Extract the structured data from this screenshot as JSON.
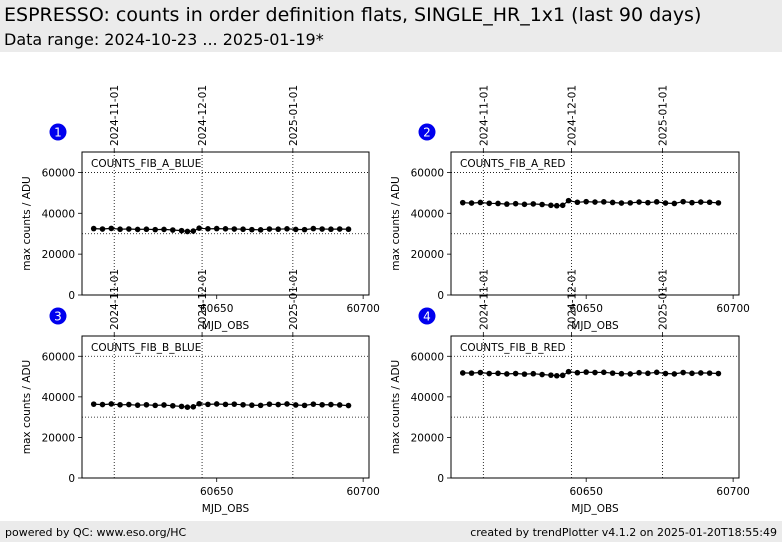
{
  "header": {
    "title": "ESPRESSO: counts in order definition flats, SINGLE_HR_1x1 (last 90 days)",
    "subtitle": "Data range: 2024-10-23 ... 2025-01-19*"
  },
  "footer": {
    "left": "powered by QC: www.eso.org/HC",
    "right": "created by trendPlotter v4.1.2 on 2025-01-20T18:55:49"
  },
  "colors": {
    "marker": "#000000",
    "badge": "#0000ee",
    "header_bg": "#ebebeb"
  },
  "chart_data": [
    {
      "type": "scatter",
      "badge": "1",
      "panel_label": "COUNTS_FIB_A_BLUE",
      "xlabel": "MJD_OBS",
      "ylabel": "max counts / ADU",
      "xlim": [
        60604,
        60702
      ],
      "ylim": [
        0,
        70000
      ],
      "xticks": [
        60650,
        60700
      ],
      "yticks": [
        0,
        20000,
        40000,
        60000
      ],
      "date_markers": [
        {
          "x": 60615,
          "label": "2024-11-01"
        },
        {
          "x": 60645,
          "label": "2024-12-01"
        },
        {
          "x": 60676,
          "label": "2025-01-01"
        }
      ],
      "hlines": [
        30000,
        60000
      ],
      "series": [
        {
          "x": [
            60608,
            60611,
            60614,
            60617,
            60620,
            60623,
            60626,
            60629,
            60632,
            60635,
            60638,
            60640,
            60642,
            60644,
            60647,
            60650,
            60653,
            60656,
            60659,
            60662,
            60665,
            60668,
            60671,
            60674,
            60677,
            60680,
            60683,
            60686,
            60689,
            60692,
            60695
          ],
          "y": [
            32500,
            32300,
            32600,
            32200,
            32300,
            32100,
            32200,
            32000,
            32100,
            31800,
            31500,
            31100,
            31300,
            32700,
            32400,
            32500,
            32400,
            32300,
            32200,
            32000,
            31900,
            32300,
            32200,
            32400,
            32100,
            32000,
            32500,
            32300,
            32200,
            32300,
            32200
          ]
        }
      ]
    },
    {
      "type": "scatter",
      "badge": "2",
      "panel_label": "COUNTS_FIB_A_RED",
      "xlabel": "MJD_OBS",
      "ylabel": "max counts / ADU",
      "xlim": [
        60604,
        60702
      ],
      "ylim": [
        0,
        70000
      ],
      "xticks": [
        60650,
        60700
      ],
      "yticks": [
        0,
        20000,
        40000,
        60000
      ],
      "date_markers": [
        {
          "x": 60615,
          "label": "2024-11-01"
        },
        {
          "x": 60645,
          "label": "2024-12-01"
        },
        {
          "x": 60676,
          "label": "2025-01-01"
        }
      ],
      "hlines": [
        30000,
        60000
      ],
      "series": [
        {
          "x": [
            60608,
            60611,
            60614,
            60617,
            60620,
            60623,
            60626,
            60629,
            60632,
            60635,
            60638,
            60640,
            60642,
            60644,
            60647,
            60650,
            60653,
            60656,
            60659,
            60662,
            60665,
            60668,
            60671,
            60674,
            60677,
            60680,
            60683,
            60686,
            60689,
            60692,
            60695
          ],
          "y": [
            45200,
            45000,
            45300,
            44900,
            44800,
            44500,
            44700,
            44400,
            44600,
            44300,
            43900,
            43700,
            43900,
            46200,
            45400,
            45700,
            45500,
            45600,
            45300,
            45000,
            45100,
            45500,
            45200,
            45600,
            45000,
            44800,
            45700,
            45200,
            45500,
            45400,
            45100
          ]
        }
      ]
    },
    {
      "type": "scatter",
      "badge": "3",
      "panel_label": "COUNTS_FIB_B_BLUE",
      "xlabel": "MJD_OBS",
      "ylabel": "max counts / ADU",
      "xlim": [
        60604,
        60702
      ],
      "ylim": [
        0,
        70000
      ],
      "xticks": [
        60650,
        60700
      ],
      "yticks": [
        0,
        20000,
        40000,
        60000
      ],
      "date_markers": [
        {
          "x": 60615,
          "label": "2024-11-01"
        },
        {
          "x": 60645,
          "label": "2024-12-01"
        },
        {
          "x": 60676,
          "label": "2025-01-01"
        }
      ],
      "hlines": [
        30000,
        60000
      ],
      "series": [
        {
          "x": [
            60608,
            60611,
            60614,
            60617,
            60620,
            60623,
            60626,
            60629,
            60632,
            60635,
            60638,
            60640,
            60642,
            60644,
            60647,
            60650,
            60653,
            60656,
            60659,
            60662,
            60665,
            60668,
            60671,
            60674,
            60677,
            60680,
            60683,
            60686,
            60689,
            60692,
            60695
          ],
          "y": [
            36400,
            36200,
            36500,
            36100,
            36200,
            35900,
            36100,
            35800,
            36000,
            35600,
            35300,
            34900,
            35100,
            36600,
            36300,
            36500,
            36300,
            36400,
            36100,
            35900,
            35800,
            36400,
            36200,
            36500,
            36000,
            35800,
            36400,
            36100,
            36200,
            36000,
            35700
          ]
        }
      ]
    },
    {
      "type": "scatter",
      "badge": "4",
      "panel_label": "COUNTS_FIB_B_RED",
      "xlabel": "MJD_OBS",
      "ylabel": "max counts / ADU",
      "xlim": [
        60604,
        60702
      ],
      "ylim": [
        0,
        70000
      ],
      "xticks": [
        60650,
        60700
      ],
      "yticks": [
        0,
        20000,
        40000,
        60000
      ],
      "date_markers": [
        {
          "x": 60615,
          "label": "2024-11-01"
        },
        {
          "x": 60645,
          "label": "2024-12-01"
        },
        {
          "x": 60676,
          "label": "2025-01-01"
        }
      ],
      "hlines": [
        30000,
        60000
      ],
      "series": [
        {
          "x": [
            60608,
            60611,
            60614,
            60617,
            60620,
            60623,
            60626,
            60629,
            60632,
            60635,
            60638,
            60640,
            60642,
            60644,
            60647,
            60650,
            60653,
            60656,
            60659,
            60662,
            60665,
            60668,
            60671,
            60674,
            60677,
            60680,
            60683,
            60686,
            60689,
            60692,
            60695
          ],
          "y": [
            51800,
            51700,
            52000,
            51500,
            51600,
            51300,
            51500,
            51200,
            51400,
            51000,
            50700,
            50400,
            50600,
            52400,
            51900,
            52200,
            52000,
            52100,
            51700,
            51400,
            51300,
            51900,
            51600,
            52100,
            51500,
            51300,
            52000,
            51600,
            51800,
            51700,
            51500
          ]
        }
      ]
    }
  ]
}
